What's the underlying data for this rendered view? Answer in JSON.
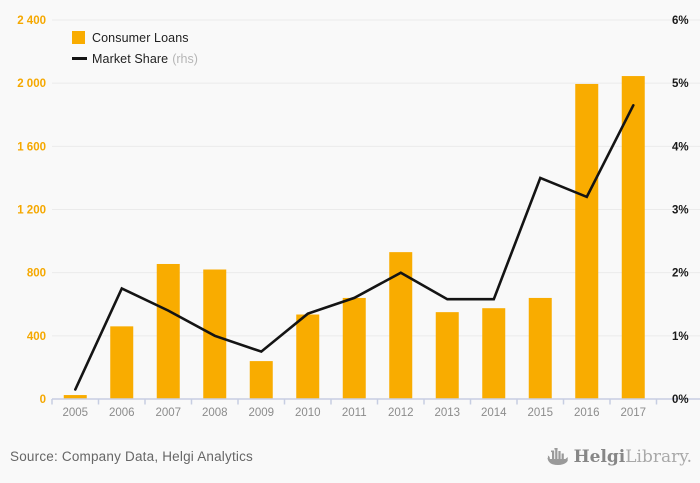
{
  "chart_data": {
    "type": "bar",
    "title": "",
    "categories": [
      "2005",
      "2006",
      "2007",
      "2008",
      "2009",
      "2010",
      "2011",
      "2012",
      "2013",
      "2014",
      "2015",
      "2016",
      "2017"
    ],
    "series": [
      {
        "name": "Consumer Loans",
        "type": "bar",
        "axis": "left",
        "values": [
          25,
          460,
          855,
          820,
          240,
          535,
          640,
          930,
          550,
          575,
          640,
          1995,
          2045
        ]
      },
      {
        "name": "Market Share",
        "type": "line",
        "axis": "right",
        "axis_note": "(rhs)",
        "unit": "%",
        "values": [
          0.15,
          1.75,
          1.4,
          1.0,
          0.75,
          1.35,
          1.6,
          2.0,
          1.58,
          1.58,
          3.5,
          3.2,
          4.65
        ]
      }
    ],
    "left_axis": {
      "min": 0,
      "max": 2400,
      "step": 400,
      "tick_labels": [
        "0",
        "400",
        "800",
        "1 200",
        "1 600",
        "2 000",
        "2 400"
      ]
    },
    "right_axis": {
      "min": 0,
      "max": 6,
      "step": 1,
      "tick_labels": [
        "0%",
        "1%",
        "2%",
        "3%",
        "4%",
        "5%",
        "6%"
      ]
    },
    "legend_position": "top-left",
    "grid": "horizontal"
  },
  "footer": {
    "source": "Source: Company Data, Helgi Analytics",
    "logo": {
      "bold": "Helgi",
      "light": "Library.",
      "icon": "viking-ship-icon"
    }
  },
  "colors": {
    "bar": "#F9AC00",
    "line": "#141414",
    "left_axis_labels": "#F5A800",
    "right_axis_labels": "#1A1A1A",
    "x_axis_labels": "#8C8C8C",
    "axis_line": "#C7CEE2",
    "gridline": "#EBEBEB",
    "background": "#F9F9F9",
    "source_text": "#666666",
    "legend_note": "#B5B5B5",
    "logo_gray": "#8E8E8E"
  }
}
